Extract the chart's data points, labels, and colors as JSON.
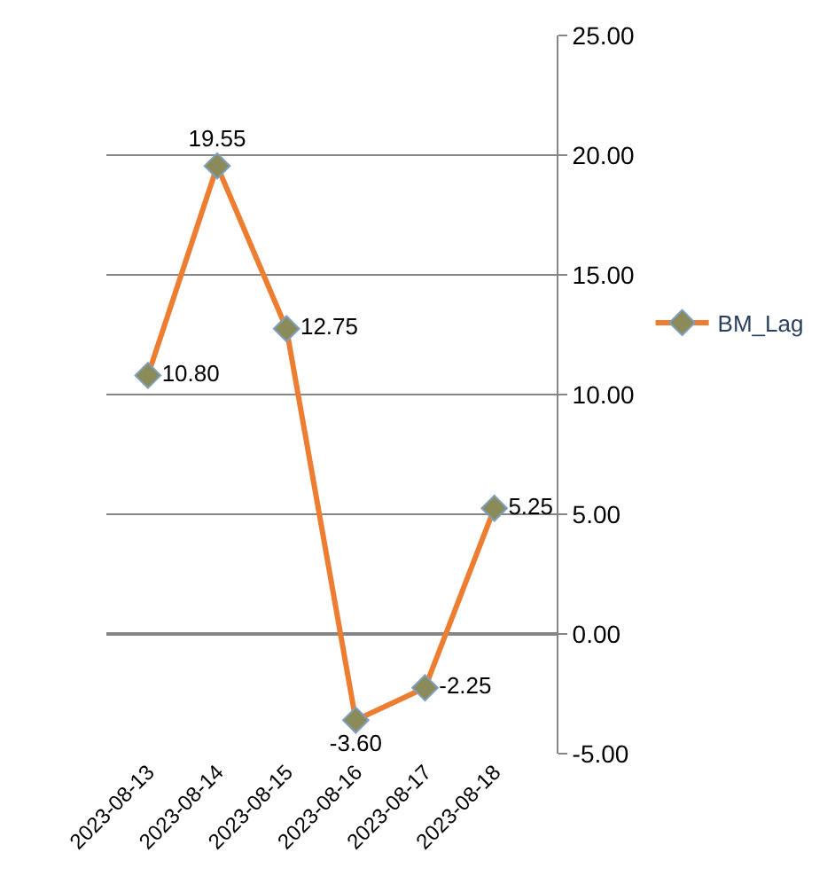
{
  "chart_data": {
    "type": "line",
    "categories": [
      "2023-08-13",
      "2023-08-14",
      "2023-08-15",
      "2023-08-16",
      "2023-08-17",
      "2023-08-18"
    ],
    "series": [
      {
        "name": "BM_Lag",
        "color": "#ed7d31",
        "values": [
          10.8,
          19.55,
          12.75,
          -3.6,
          -2.25,
          5.25
        ],
        "value_labels": [
          "10.80",
          "19.55",
          "12.75",
          "-3.60",
          "-2.25",
          "5.25"
        ]
      }
    ],
    "ylim": [
      -5,
      25
    ],
    "yticks": [
      {
        "value": -5,
        "label": "-5.00"
      },
      {
        "value": 0,
        "label": "0.00"
      },
      {
        "value": 5,
        "label": "5.00"
      },
      {
        "value": 10,
        "label": "10.00"
      },
      {
        "value": 15,
        "label": "15.00"
      },
      {
        "value": 20,
        "label": "20.00"
      },
      {
        "value": 25,
        "label": "25.00"
      }
    ],
    "grid": "y",
    "legend": "right",
    "marker": "diamond",
    "line_style": "solid"
  }
}
